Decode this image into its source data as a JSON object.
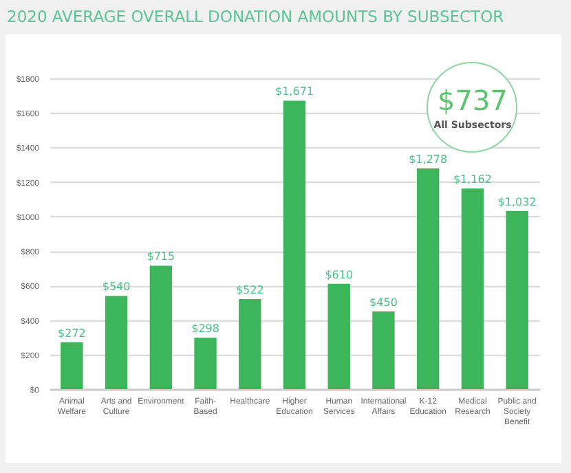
{
  "chart_data": {
    "type": "bar",
    "title": "2020 AVERAGE OVERALL DONATION AMOUNTS BY SUBSECTOR",
    "categories": [
      "Animal Welfare",
      "Arts and Culture",
      "Environment",
      "Faith-Based",
      "Healthcare",
      "Higher Education",
      "Human Services",
      "International Affairs",
      "K-12 Education",
      "Medical Research",
      "Public and Society Benefit"
    ],
    "values": [
      272,
      540,
      715,
      298,
      522,
      1671,
      610,
      450,
      1278,
      1162,
      1032
    ],
    "value_labels": [
      "$272",
      "$540",
      "$715",
      "$298",
      "$522",
      "$1,671",
      "$610",
      "$450",
      "$1,278",
      "$1,162",
      "$1,032"
    ],
    "color": "#3db55a",
    "ylim": [
      0,
      1800
    ],
    "yticks": [
      {
        "value": 0,
        "label": "$0"
      },
      {
        "value": 200,
        "label": "$200"
      },
      {
        "value": 400,
        "label": "$400"
      },
      {
        "value": 600,
        "label": "$600"
      },
      {
        "value": 800,
        "label": "$800"
      },
      {
        "value": 1000,
        "label": "$1000"
      },
      {
        "value": 1200,
        "label": "$1200"
      },
      {
        "value": 1400,
        "label": "$1400"
      },
      {
        "value": 1600,
        "label": "$1600"
      },
      {
        "value": 1800,
        "label": "$1800"
      }
    ],
    "grid": "y",
    "annotations": [
      "$737",
      "All Subsectors"
    ]
  }
}
